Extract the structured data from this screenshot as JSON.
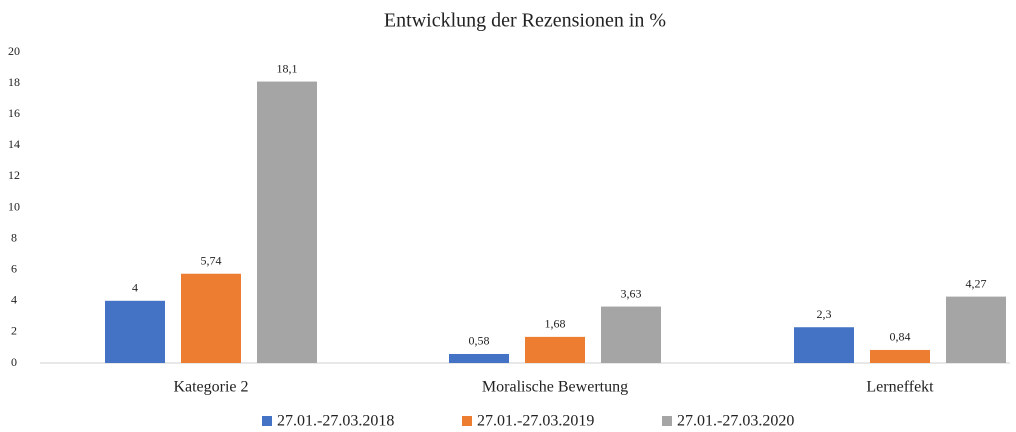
{
  "chart_data": {
    "type": "bar",
    "title": "Entwicklung der Rezensionen in %",
    "categories": [
      "Kategorie 2",
      "Moralische Bewertung",
      "Lerneffekt"
    ],
    "series": [
      {
        "name": "27.01.-27.03.2018",
        "color": "#4472c4",
        "values": [
          4,
          0.58,
          2.3
        ],
        "value_labels": [
          "4",
          "0,58",
          "2,3"
        ]
      },
      {
        "name": "27.01.-27.03.2019",
        "color": "#ed7d31",
        "values": [
          5.74,
          1.68,
          0.84
        ],
        "value_labels": [
          "5,74",
          "1,68",
          "0,84"
        ]
      },
      {
        "name": "27.01.-27.03.2020",
        "color": "#a5a5a5",
        "values": [
          18.1,
          3.63,
          4.27
        ],
        "value_labels": [
          "18,1",
          "3,63",
          "4,27"
        ]
      }
    ],
    "ylim": [
      0,
      20
    ],
    "yticks": [
      0,
      2,
      4,
      6,
      8,
      10,
      12,
      14,
      16,
      18,
      20
    ],
    "grid": false,
    "legend": "bottom"
  }
}
